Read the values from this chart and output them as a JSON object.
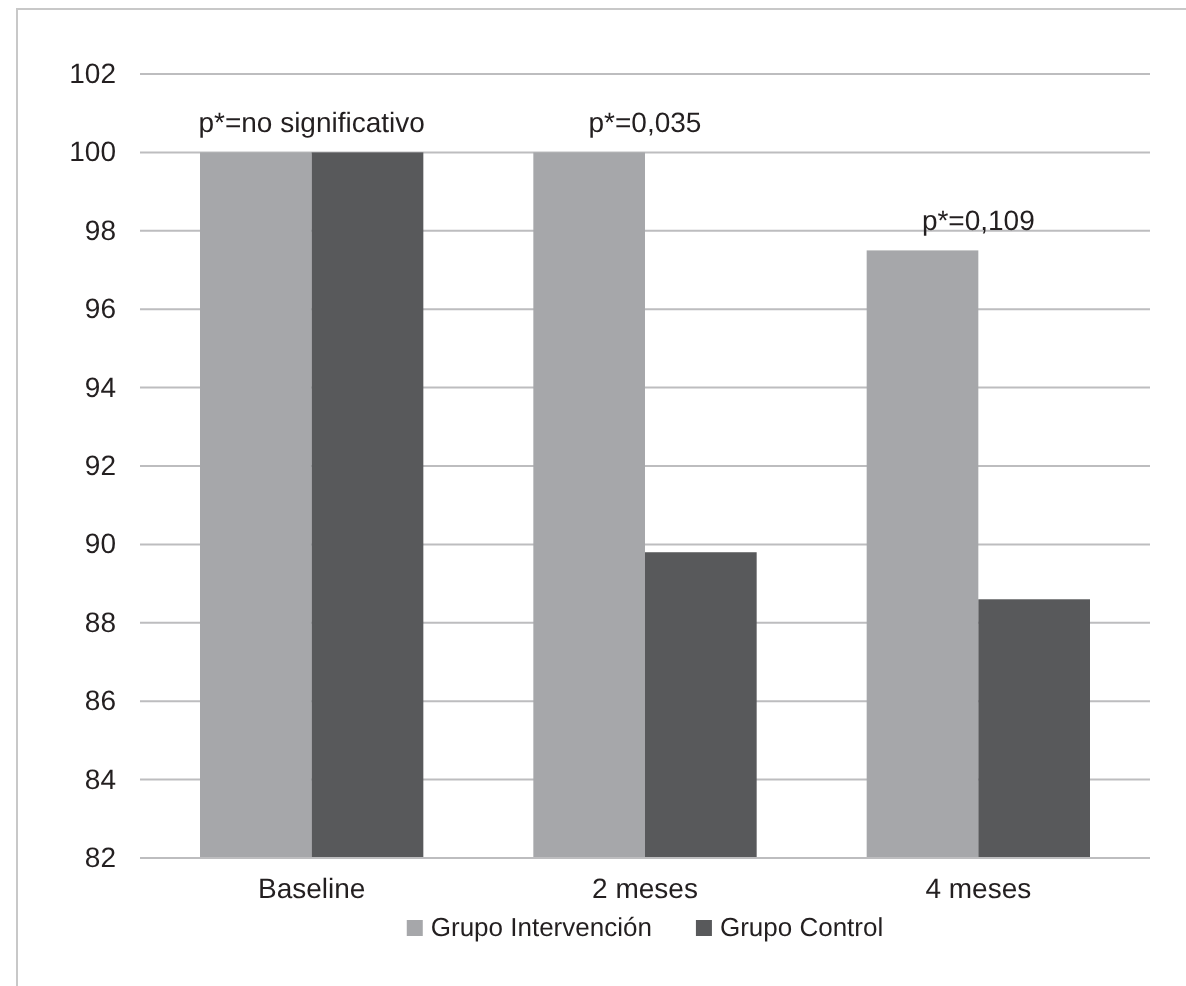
{
  "chart_data": {
    "type": "bar",
    "categories": [
      "Baseline",
      "2 meses",
      "4 meses"
    ],
    "series": [
      {
        "name": "Grupo Intervención",
        "color": "#a6a7aa",
        "values": [
          100,
          100,
          97.5
        ]
      },
      {
        "name": "Grupo Control",
        "color": "#58595b",
        "values": [
          100,
          89.8,
          88.6
        ]
      }
    ],
    "ylim": [
      82,
      102
    ],
    "yticks": [
      82,
      84,
      86,
      88,
      90,
      92,
      94,
      96,
      98,
      100,
      102
    ],
    "grid": "y",
    "legend": "bottom",
    "annotations": [
      "p*=no significativo",
      "p*=0,035",
      "p*=0,109"
    ]
  }
}
